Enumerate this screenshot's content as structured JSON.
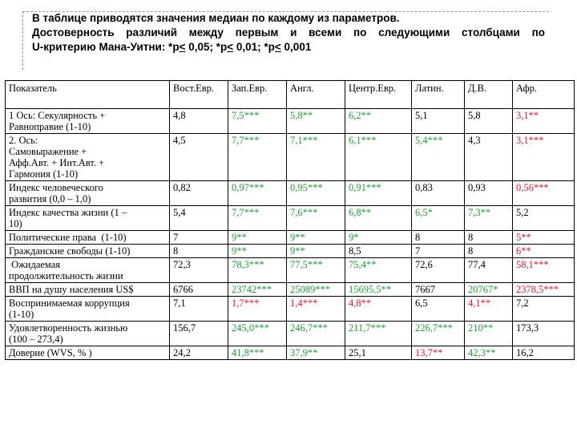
{
  "heading": {
    "line1": "В таблице приводятся значения медиан по каждому из параметров.",
    "line2": "Достоверность различий между первым и всеми по следующими столбцами по",
    "line3_prefix": "U-критерию Мана-Уитни:  *р",
    "lt1": "<",
    "line3_mid1": " 0,05; *р",
    "lt2": "<",
    "line3_mid2": " 0,01; *р",
    "lt3": "<",
    "line3_end": " 0,001"
  },
  "table": {
    "headers": [
      "Показатель",
      "Вост.Евр.",
      "Зап.Евр.",
      "Англ.",
      "Центр.Евр.",
      "Латин.",
      "Д.В.",
      "Афр."
    ],
    "rows": [
      {
        "label": [
          "1 Ось: Секулярность +",
          "Равноправие (1-10)"
        ],
        "cells": [
          {
            "v": "4,8",
            "c": "k"
          },
          {
            "v": "7,5***",
            "c": "g"
          },
          {
            "v": "5,8**",
            "c": "g"
          },
          {
            "v": "6,2**",
            "c": "g"
          },
          {
            "v": "5,1",
            "c": "k"
          },
          {
            "v": "5,8",
            "c": "k"
          },
          {
            "v": "3,1**",
            "c": "r"
          }
        ]
      },
      {
        "label": [
          "2. Ось:",
          "Самовыражение +",
          "Афф.Авт. + Инт.Авт. +",
          "Гармония (1-10)"
        ],
        "cells": [
          {
            "v": "4,5",
            "c": "k"
          },
          {
            "v": "7,7***",
            "c": "g"
          },
          {
            "v": "7,1***",
            "c": "g"
          },
          {
            "v": "6,1***",
            "c": "g"
          },
          {
            "v": "5,4***",
            "c": "g"
          },
          {
            "v": "4,3",
            "c": "k"
          },
          {
            "v": "3,1***",
            "c": "r"
          }
        ]
      },
      {
        "label": [
          "Индекс человеческого",
          "развития (0,0 – 1,0)"
        ],
        "cells": [
          {
            "v": "0,82",
            "c": "k"
          },
          {
            "v": "0,97***",
            "c": "g"
          },
          {
            "v": "0,95***",
            "c": "g"
          },
          {
            "v": "0,91***",
            "c": "g"
          },
          {
            "v": "0,83",
            "c": "k"
          },
          {
            "v": "0,93",
            "c": "k"
          },
          {
            "v": "0,56***",
            "c": "r"
          }
        ]
      },
      {
        "label": [
          "Индекс качества жизни (1 –",
          "10)"
        ],
        "cells": [
          {
            "v": "5,4",
            "c": "k"
          },
          {
            "v": "7,7***",
            "c": "g"
          },
          {
            "v": "7,6***",
            "c": "g"
          },
          {
            "v": "6,8**",
            "c": "g"
          },
          {
            "v": "6,5*",
            "c": "g"
          },
          {
            "v": "7,3**",
            "c": "g"
          },
          {
            "v": "5,2",
            "c": "k"
          }
        ]
      },
      {
        "label": [
          "Политические права  (1-10)"
        ],
        "cells": [
          {
            "v": "7",
            "c": "k"
          },
          {
            "v": "9**",
            "c": "g"
          },
          {
            "v": "9**",
            "c": "g"
          },
          {
            "v": "9*",
            "c": "g"
          },
          {
            "v": "8",
            "c": "k"
          },
          {
            "v": "8",
            "c": "k"
          },
          {
            "v": "5**",
            "c": "r"
          }
        ]
      },
      {
        "label": [
          "Гражданские свободы (1-10)"
        ],
        "cells": [
          {
            "v": "8",
            "c": "k"
          },
          {
            "v": "9**",
            "c": "g"
          },
          {
            "v": "9**",
            "c": "g"
          },
          {
            "v": "8,5",
            "c": "k"
          },
          {
            "v": "7",
            "c": "k"
          },
          {
            "v": "8",
            "c": "k"
          },
          {
            "v": "6**",
            "c": "r"
          }
        ]
      },
      {
        "label": [
          " Ожидаемая",
          "продолжительность жизни"
        ],
        "cells": [
          {
            "v": "72,3",
            "c": "k"
          },
          {
            "v": "78,3***",
            "c": "g"
          },
          {
            "v": "77,5***",
            "c": "g"
          },
          {
            "v": "75,4**",
            "c": "g"
          },
          {
            "v": "72,6",
            "c": "k"
          },
          {
            "v": "77,4",
            "c": "k"
          },
          {
            "v": "58,1***",
            "c": "r"
          }
        ]
      },
      {
        "label": [
          "ВВП на душу населения US$"
        ],
        "cells": [
          {
            "v": "6766",
            "c": "k"
          },
          {
            "v": "23742***",
            "c": "g"
          },
          {
            "v": "25089***",
            "c": "g"
          },
          {
            "v": "15695,5**",
            "c": "g"
          },
          {
            "v": "7667",
            "c": "k"
          },
          {
            "v": "20767*",
            "c": "g"
          },
          {
            "v": "2378,5***",
            "c": "r"
          }
        ]
      },
      {
        "label": [
          "Воспринимаемая коррупция",
          "(1-10)"
        ],
        "cells": [
          {
            "v": "7,1",
            "c": "k"
          },
          {
            "v": "1,7***",
            "c": "r"
          },
          {
            "v": "1,4***",
            "c": "r"
          },
          {
            "v": "4,8**",
            "c": "r"
          },
          {
            "v": "6,5",
            "c": "k"
          },
          {
            "v": "4,1**",
            "c": "r"
          },
          {
            "v": "7,2",
            "c": "k"
          }
        ]
      },
      {
        "label": [
          "Удовлетворенность жизнью",
          "(100 – 273,4)"
        ],
        "cells": [
          {
            "v": "156,7",
            "c": "k"
          },
          {
            "v": "245,0***",
            "c": "g"
          },
          {
            "v": "246,7***",
            "c": "g"
          },
          {
            "v": "211,7***",
            "c": "g"
          },
          {
            "v": "226,7***",
            "c": "g"
          },
          {
            "v": "210**",
            "c": "g"
          },
          {
            "v": "173,3",
            "c": "k"
          }
        ]
      },
      {
        "label": [
          "Доверие (WVS, % )"
        ],
        "cells": [
          {
            "v": "24,2",
            "c": "k"
          },
          {
            "v": "41,8***",
            "c": "g"
          },
          {
            "v": "37,9**",
            "c": "g"
          },
          {
            "v": "25,1",
            "c": "k"
          },
          {
            "v": "13,7**",
            "c": "r"
          },
          {
            "v": "42,3**",
            "c": "g"
          },
          {
            "v": "16,2",
            "c": "k"
          }
        ]
      }
    ]
  }
}
